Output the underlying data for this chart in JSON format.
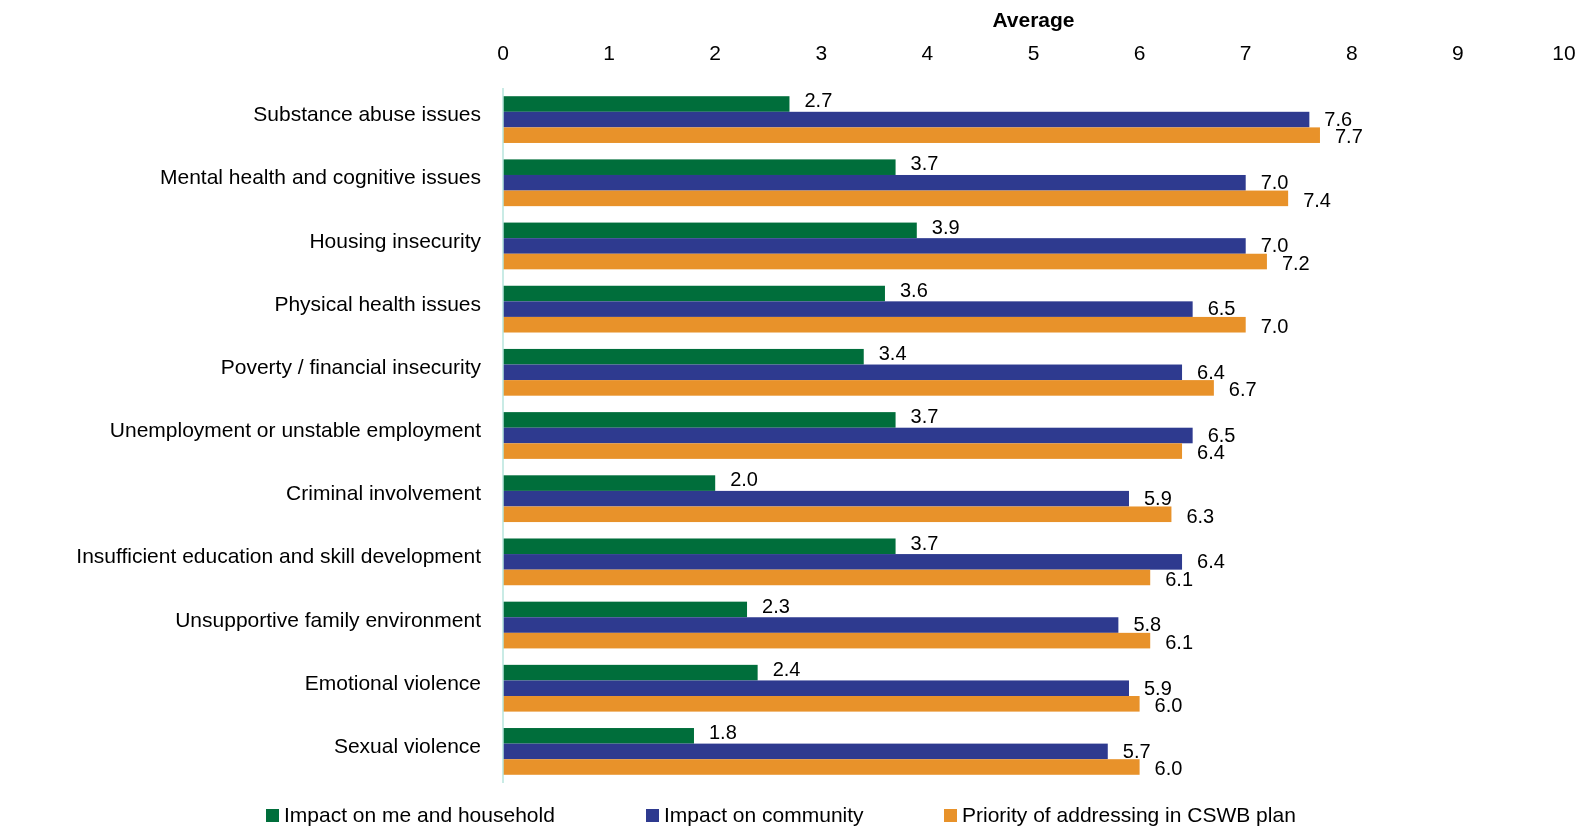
{
  "chart_data": {
    "type": "bar",
    "orientation": "horizontal",
    "xlabel": "Average",
    "categories": [
      "Substance abuse issues",
      "Mental health and cognitive issues",
      "Housing insecurity",
      "Physical health issues",
      "Poverty / financial insecurity",
      "Unemployment or unstable employment",
      "Criminal involvement",
      "Insufficient education and skill development",
      "Unsupportive family environment",
      "Emotional violence",
      "Sexual violence"
    ],
    "series": [
      {
        "name": "Impact on me and household",
        "color": "#006e3b",
        "values": [
          2.7,
          3.7,
          3.9,
          3.6,
          3.4,
          3.7,
          2.0,
          3.7,
          2.3,
          2.4,
          1.8
        ],
        "value_labels": [
          "2.7",
          "3.7",
          "3.9",
          "3.6",
          "3.4",
          "3.7",
          "2.0",
          "3.7",
          "2.3",
          "2.4",
          "1.8"
        ]
      },
      {
        "name": "Impact on community",
        "color": "#2e3a8f",
        "values": [
          7.6,
          7.0,
          7.0,
          6.5,
          6.4,
          6.5,
          5.9,
          6.4,
          5.8,
          5.9,
          5.7
        ],
        "value_labels": [
          "7.6",
          "7.0",
          "7.0",
          "6.5",
          "6.4",
          "6.5",
          "5.9",
          "6.4",
          "5.8",
          "5.9",
          "5.7"
        ]
      },
      {
        "name": "Priority of addressing in CSWB plan",
        "color": "#e8922a",
        "values": [
          7.7,
          7.4,
          7.2,
          7.0,
          6.7,
          6.4,
          6.3,
          6.1,
          6.1,
          6.0,
          6.0
        ],
        "value_labels": [
          "7.7",
          "7.4",
          "7.2",
          "7.0",
          "6.7",
          "6.4",
          "6.3",
          "6.1",
          "6.1",
          "6.0",
          "6.0"
        ]
      }
    ],
    "xlim": [
      0,
      10
    ],
    "xticks": [
      0,
      1,
      2,
      3,
      4,
      5,
      6,
      7,
      8,
      9,
      10
    ],
    "grid": false,
    "legend": "bottom"
  }
}
